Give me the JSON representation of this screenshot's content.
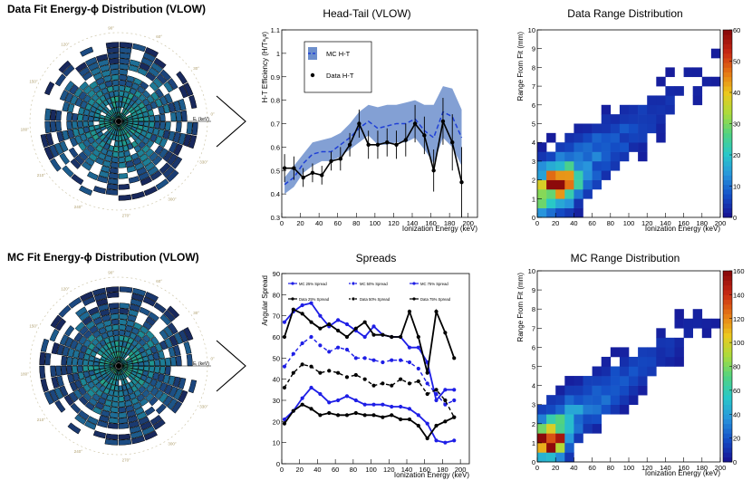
{
  "polar_titles": {
    "data": "Data Fit Energy-ϕ Distribution (VLOW)",
    "mc": "MC Fit Energy-ϕ Distribution (VLOW)"
  },
  "polar_axis_label": "Eᵣ (keV)",
  "colors": {
    "mc_band": "#6d8fcc",
    "mc_line": "#1f3fd6",
    "data_line": "#000000",
    "spread_blue": "#1e1ee6",
    "polar_ring": "#17285e"
  },
  "chart_data": [
    {
      "id": "headtail",
      "type": "line",
      "title": "Head-Tail (VLOW)",
      "xlabel": "Ionization Energy (keV)",
      "ylabel": "H-T Efficiency (H/Tᵃᵧᵍ)",
      "xlim": [
        0,
        210
      ],
      "ylim": [
        0.3,
        1.1
      ],
      "xticks": [
        "0",
        "20",
        "40",
        "60",
        "80",
        "100",
        "120",
        "140",
        "160",
        "180",
        "200"
      ],
      "yticks": [
        "0.3",
        "0.4",
        "0.5",
        "0.6",
        "0.7",
        "0.8",
        "0.9",
        "1",
        "1.1"
      ],
      "legend": [
        "MC H-T",
        "Data H-T"
      ],
      "x": [
        3,
        13,
        23,
        33,
        43,
        53,
        63,
        73,
        83,
        93,
        103,
        113,
        123,
        133,
        143,
        153,
        163,
        173,
        183,
        193
      ],
      "mc_mean": [
        0.44,
        0.47,
        0.53,
        0.57,
        0.58,
        0.58,
        0.61,
        0.64,
        0.68,
        0.71,
        0.68,
        0.69,
        0.7,
        0.7,
        0.72,
        0.67,
        0.64,
        0.75,
        0.73,
        0.64
      ],
      "mc_low": [
        0.4,
        0.43,
        0.49,
        0.52,
        0.54,
        0.54,
        0.56,
        0.59,
        0.62,
        0.65,
        0.61,
        0.61,
        0.62,
        0.62,
        0.64,
        0.59,
        0.53,
        0.64,
        0.6,
        0.52
      ],
      "mc_high": [
        0.47,
        0.52,
        0.57,
        0.62,
        0.63,
        0.64,
        0.66,
        0.7,
        0.75,
        0.78,
        0.77,
        0.78,
        0.78,
        0.79,
        0.8,
        0.78,
        0.78,
        0.86,
        0.85,
        0.76
      ],
      "data_y": [
        0.51,
        0.51,
        0.47,
        0.49,
        0.48,
        0.54,
        0.55,
        0.61,
        0.7,
        0.61,
        0.61,
        0.62,
        0.61,
        0.63,
        0.7,
        0.65,
        0.5,
        0.71,
        0.62,
        0.45
      ],
      "data_err": [
        0.06,
        0.05,
        0.04,
        0.04,
        0.04,
        0.04,
        0.05,
        0.05,
        0.06,
        0.06,
        0.06,
        0.06,
        0.06,
        0.07,
        0.08,
        0.08,
        0.09,
        0.1,
        0.12,
        0.15
      ]
    },
    {
      "id": "spreads",
      "type": "line",
      "title": "Spreads",
      "xlabel": "Ionization Energy (keV)",
      "ylabel": "Angular Spread",
      "xlim": [
        0,
        210
      ],
      "ylim": [
        0,
        90
      ],
      "xticks": [
        "0",
        "20",
        "40",
        "60",
        "80",
        "100",
        "120",
        "140",
        "160",
        "180",
        "200"
      ],
      "yticks": [
        "0",
        "10",
        "20",
        "30",
        "40",
        "50",
        "60",
        "70",
        "80",
        "90"
      ],
      "x": [
        3,
        13,
        23,
        33,
        43,
        53,
        63,
        73,
        83,
        93,
        103,
        113,
        123,
        133,
        143,
        153,
        163,
        173,
        183,
        193
      ],
      "series": [
        {
          "name": "MC 25% Spread",
          "style": "solid",
          "color": "blue",
          "values": [
            21,
            25,
            31,
            36,
            33,
            29,
            30,
            32,
            30,
            28,
            28,
            28,
            27,
            27,
            26,
            23,
            19,
            11,
            10,
            11
          ]
        },
        {
          "name": "MC 50% Spread",
          "style": "dashed",
          "color": "blue",
          "values": [
            46,
            52,
            57,
            60,
            56,
            53,
            55,
            54,
            50,
            50,
            49,
            48,
            49,
            49,
            48,
            45,
            38,
            33,
            28,
            30
          ]
        },
        {
          "name": "MC 75% Spread",
          "style": "solid",
          "color": "blue",
          "values": [
            67,
            72,
            75,
            76,
            70,
            65,
            68,
            66,
            63,
            60,
            65,
            61,
            60,
            60,
            55,
            55,
            48,
            30,
            35,
            35
          ]
        },
        {
          "name": "Data 25% Spread",
          "style": "solid",
          "color": "black",
          "values": [
            19,
            25,
            28,
            26,
            23,
            24,
            23,
            23,
            24,
            23,
            23,
            22,
            23,
            21,
            21,
            18,
            12,
            18,
            20,
            22
          ]
        },
        {
          "name": "Data 50% Spread",
          "style": "dashed",
          "color": "black",
          "values": [
            36,
            43,
            47,
            46,
            43,
            44,
            43,
            41,
            42,
            40,
            37,
            38,
            37,
            40,
            38,
            39,
            33,
            35,
            30,
            22
          ]
        },
        {
          "name": "Data 75% Spread",
          "style": "solid",
          "color": "black",
          "values": [
            60,
            73,
            71,
            67,
            64,
            66,
            63,
            60,
            64,
            67,
            61,
            61,
            60,
            60,
            72,
            60,
            43,
            72,
            62,
            50
          ]
        }
      ]
    },
    {
      "id": "data_range",
      "type": "heatmap",
      "title": "Data Range Distribution",
      "xlabel": "Ionization Energy (keV)",
      "ylabel": "Range From Fit (mm)",
      "xlim": [
        0,
        200
      ],
      "ylim": [
        0,
        10
      ],
      "zlim": [
        0,
        60
      ],
      "xticks": [
        "0",
        "20",
        "40",
        "60",
        "80",
        "100",
        "120",
        "140",
        "160",
        "180",
        "200"
      ],
      "yticks": [
        "0",
        "1",
        "2",
        "3",
        "4",
        "5",
        "6",
        "7",
        "8",
        "9",
        "10"
      ],
      "zticks": [
        "0",
        "10",
        "20",
        "30",
        "40",
        "50",
        "60"
      ],
      "peak": 60,
      "bin_x": 10,
      "bin_y": 0.5
    },
    {
      "id": "mc_range",
      "type": "heatmap",
      "title": "MC Range Distribution",
      "xlabel": "Ionization Energy (keV)",
      "ylabel": "Range From Fit (mm)",
      "xlim": [
        0,
        200
      ],
      "ylim": [
        0,
        10
      ],
      "zlim": [
        0,
        160
      ],
      "xticks": [
        "0",
        "20",
        "40",
        "60",
        "80",
        "100",
        "120",
        "140",
        "160",
        "180",
        "200"
      ],
      "yticks": [
        "0",
        "1",
        "2",
        "3",
        "4",
        "5",
        "6",
        "7",
        "8",
        "9",
        "10"
      ],
      "zticks": [
        "0",
        "20",
        "40",
        "60",
        "80",
        "100",
        "120",
        "140",
        "160"
      ],
      "peak": 160,
      "bin_x": 10,
      "bin_y": 0.5
    }
  ]
}
